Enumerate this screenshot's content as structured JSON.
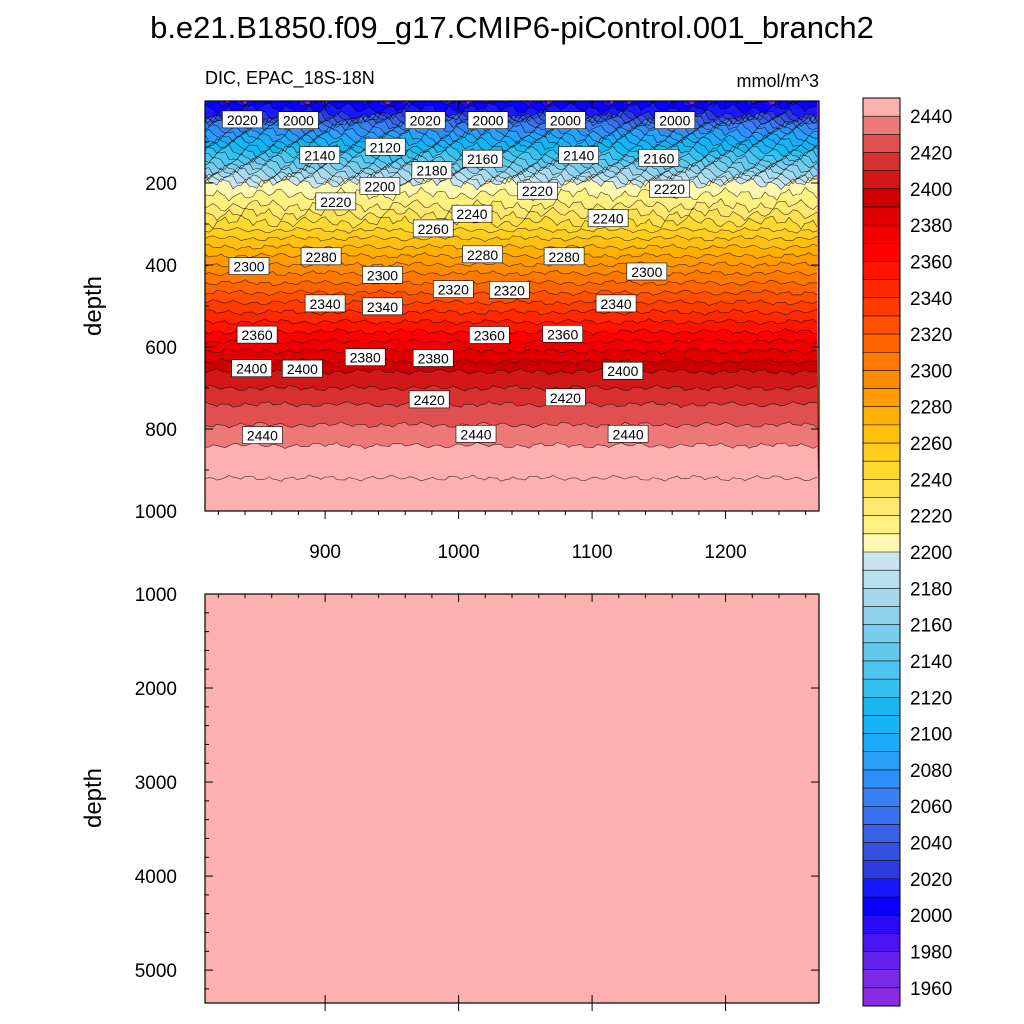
{
  "title": "b.e21.B1850.f09_g17.CMIP6-piControl.001_branch2",
  "chart_data": [
    {
      "type": "contour",
      "panel": "upper",
      "left_title": "DIC, EPAC_18S-18N",
      "right_title": "mmol/m^3",
      "xlabel": "",
      "ylabel": "depth",
      "xlim": [
        810,
        1270
      ],
      "ylim": [
        1000,
        0
      ],
      "xticks": [
        900,
        1000,
        1100,
        1200
      ],
      "xtick_labels": [
        "900",
        "1000",
        "1100",
        "1200"
      ],
      "yticks": [
        200,
        400,
        600,
        800,
        1000
      ],
      "ytick_labels": [
        "200",
        "400",
        "600",
        "800",
        "1000"
      ],
      "contour_depth_profile": {
        "values": [
          2000,
          2020,
          2060,
          2100,
          2140,
          2180,
          2200,
          2220,
          2260,
          2300,
          2340,
          2380,
          2400,
          2420,
          2440,
          2460
        ],
        "depths": [
          0,
          35,
          55,
          100,
          145,
          185,
          200,
          255,
          335,
          420,
          515,
          610,
          660,
          740,
          840,
          1000
        ]
      },
      "contour_labels": [
        {
          "text": "2020",
          "x": 838,
          "depth": 46
        },
        {
          "text": "2000",
          "x": 880,
          "depth": 48
        },
        {
          "text": "2020",
          "x": 975,
          "depth": 48
        },
        {
          "text": "2000",
          "x": 1022,
          "depth": 48
        },
        {
          "text": "2000",
          "x": 1080,
          "depth": 48
        },
        {
          "text": "2000",
          "x": 1162,
          "depth": 48
        },
        {
          "text": "2140",
          "x": 896,
          "depth": 133
        },
        {
          "text": "2120",
          "x": 945,
          "depth": 113
        },
        {
          "text": "2180",
          "x": 980,
          "depth": 170
        },
        {
          "text": "2160",
          "x": 1018,
          "depth": 142
        },
        {
          "text": "2140",
          "x": 1090,
          "depth": 133
        },
        {
          "text": "2160",
          "x": 1150,
          "depth": 140
        },
        {
          "text": "2200",
          "x": 941,
          "depth": 208
        },
        {
          "text": "2220",
          "x": 908,
          "depth": 246
        },
        {
          "text": "2220",
          "x": 1059,
          "depth": 220
        },
        {
          "text": "2220",
          "x": 1158,
          "depth": 215
        },
        {
          "text": "2240",
          "x": 1010,
          "depth": 276
        },
        {
          "text": "2240",
          "x": 1112,
          "depth": 287
        },
        {
          "text": "2260",
          "x": 981,
          "depth": 312
        },
        {
          "text": "2280",
          "x": 897,
          "depth": 380
        },
        {
          "text": "2280",
          "x": 1018,
          "depth": 375
        },
        {
          "text": "2280",
          "x": 1079,
          "depth": 380
        },
        {
          "text": "2300",
          "x": 843,
          "depth": 404
        },
        {
          "text": "2300",
          "x": 943,
          "depth": 425
        },
        {
          "text": "2300",
          "x": 1141,
          "depth": 417
        },
        {
          "text": "2320",
          "x": 996,
          "depth": 460
        },
        {
          "text": "2320",
          "x": 1038,
          "depth": 462
        },
        {
          "text": "2340",
          "x": 900,
          "depth": 495
        },
        {
          "text": "2340",
          "x": 943,
          "depth": 502
        },
        {
          "text": "2340",
          "x": 1118,
          "depth": 495
        },
        {
          "text": "2360",
          "x": 849,
          "depth": 571
        },
        {
          "text": "2360",
          "x": 1023,
          "depth": 572
        },
        {
          "text": "2360",
          "x": 1078,
          "depth": 569
        },
        {
          "text": "2380",
          "x": 930,
          "depth": 626
        },
        {
          "text": "2380",
          "x": 981,
          "depth": 628
        },
        {
          "text": "2400",
          "x": 845,
          "depth": 653
        },
        {
          "text": "2400",
          "x": 883,
          "depth": 654
        },
        {
          "text": "2400",
          "x": 1123,
          "depth": 659
        },
        {
          "text": "2420",
          "x": 978,
          "depth": 729
        },
        {
          "text": "2420",
          "x": 1080,
          "depth": 724
        },
        {
          "text": "2440",
          "x": 853,
          "depth": 816
        },
        {
          "text": "2440",
          "x": 1013,
          "depth": 813
        },
        {
          "text": "2440",
          "x": 1127,
          "depth": 813
        }
      ]
    },
    {
      "type": "contour",
      "panel": "lower",
      "ylabel": "depth",
      "xlim": [
        810,
        1270
      ],
      "ylim": [
        5350,
        1000
      ],
      "yticks": [
        1000,
        2000,
        3000,
        4000,
        5000
      ],
      "ytick_labels": [
        "1000",
        "2000",
        "3000",
        "4000",
        "5000"
      ],
      "uniform_value": 2460
    }
  ],
  "colorbar": {
    "levels": [
      1960,
      1970,
      1980,
      1990,
      2000,
      2010,
      2020,
      2030,
      2040,
      2050,
      2060,
      2070,
      2080,
      2090,
      2100,
      2110,
      2120,
      2130,
      2140,
      2150,
      2160,
      2170,
      2180,
      2190,
      2200,
      2210,
      2220,
      2230,
      2240,
      2250,
      2260,
      2270,
      2280,
      2290,
      2300,
      2310,
      2320,
      2330,
      2340,
      2350,
      2360,
      2370,
      2380,
      2390,
      2400,
      2410,
      2420,
      2430,
      2440,
      2450
    ],
    "labels": [
      "1960",
      "1980",
      "2000",
      "2020",
      "2040",
      "2060",
      "2080",
      "2100",
      "2120",
      "2140",
      "2160",
      "2180",
      "2200",
      "2220",
      "2240",
      "2260",
      "2280",
      "2300",
      "2320",
      "2340",
      "2360",
      "2380",
      "2400",
      "2420",
      "2440"
    ],
    "colors": [
      "#8a2be2",
      "#7a2ae6",
      "#6422ec",
      "#4a14f2",
      "#2a0af8",
      "#0a00ff",
      "#1818f8",
      "#2c3ae0",
      "#3350e0",
      "#3a60e6",
      "#3a70ee",
      "#3a80f2",
      "#2e90f6",
      "#2aa0f8",
      "#1aaaf8",
      "#16b4f6",
      "#1ab6f0",
      "#36c0f0",
      "#50c4f0",
      "#62c8ee",
      "#78ccec",
      "#90d2ec",
      "#a6d8ee",
      "#b8e0f0",
      "#c8e4f0",
      "#fff8b0",
      "#fff080",
      "#ffe870",
      "#ffe050",
      "#ffd830",
      "#ffcc20",
      "#ffc010",
      "#ffb000",
      "#ff9c00",
      "#ff8c00",
      "#ff7800",
      "#ff6400",
      "#ff5000",
      "#ff3c00",
      "#ff2800",
      "#ff1400",
      "#ff0000",
      "#f00000",
      "#e00000",
      "#cc0000",
      "#d01818",
      "#d63030",
      "#e05050",
      "#ec7878",
      "#fcb0b0"
    ]
  }
}
